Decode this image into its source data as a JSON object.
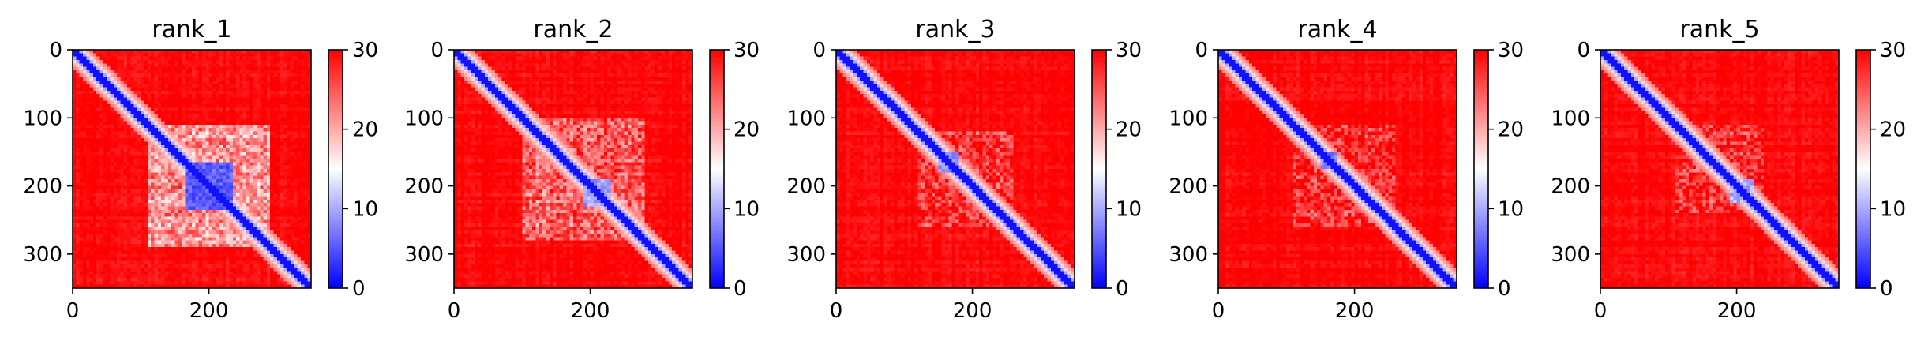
{
  "chart_data": {
    "type": "heatmap",
    "subplots": [
      {
        "title": "rank_1"
      },
      {
        "title": "rank_2"
      },
      {
        "title": "rank_3"
      },
      {
        "title": "rank_4"
      },
      {
        "title": "rank_5"
      }
    ],
    "xticks": [
      0,
      200
    ],
    "yticks": [
      0,
      100,
      200,
      300
    ],
    "xlim": [
      0,
      350
    ],
    "ylim": [
      0,
      350
    ],
    "y_inverted": true,
    "colorbar": {
      "ticks": [
        0,
        10,
        20,
        30
      ],
      "range": [
        0,
        30
      ],
      "colormap": [
        "#0000ff",
        "#ffffff",
        "#ff0000"
      ]
    },
    "colors": {
      "low": "#0000ff",
      "mid": "#ffffff",
      "high": "#ff0000"
    },
    "block_features": [
      {
        "range": [
          110,
          290
        ],
        "core": [
          165,
          235
        ],
        "core_value": 3,
        "value": 14
      },
      {
        "range": [
          100,
          280
        ],
        "core": [
          190,
          230
        ],
        "core_value": 7,
        "value": 17
      },
      {
        "range": [
          120,
          260
        ],
        "core": [
          150,
          180
        ],
        "core_value": 6,
        "value": 20
      },
      {
        "range": [
          110,
          260
        ],
        "core": [
          150,
          175
        ],
        "core_value": 5,
        "value": 20
      },
      {
        "range": [
          110,
          240
        ],
        "core": [
          190,
          225
        ],
        "core_value": 8,
        "value": 20
      }
    ]
  }
}
